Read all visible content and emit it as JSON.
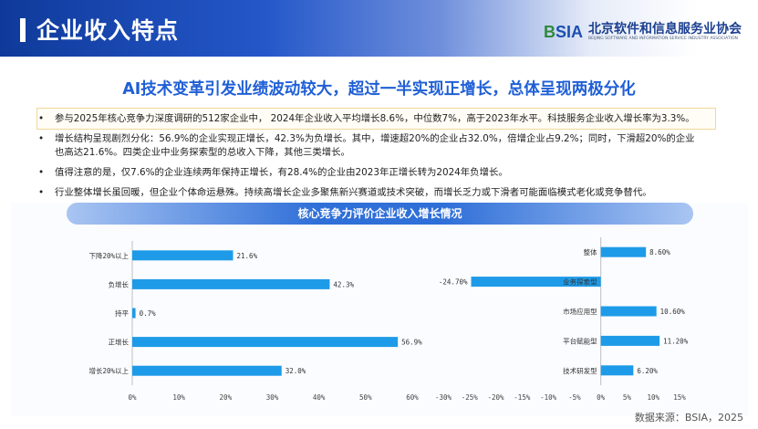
{
  "header": {
    "title": "企业收入特点"
  },
  "logo": {
    "mark_a": "B",
    "mark_b": "SIA",
    "name_cn": "北京软件和信息服务业协会",
    "name_en": "BEIJING SOFTWARE AND INFORMATION SERVICE INDUSTRY ASSOCIATION"
  },
  "subtitle": "AI技术变革引发业绩波动较大，超过一半实现正增长，总体呈现两极分化",
  "bullets": [
    {
      "line1": "参与2025年核心竞争力深度调研的512家企业中， 2024年企业收入平均增长8.6%，中位数7%，高于2023年水平。科技服务企业收入增长率为3.3%。",
      "line2": ""
    },
    {
      "line1": "增长结构呈现剧烈分化：56.9%的企业实现正增长，42.3%为负增长。其中，增速超20%的企业占32.0%，倍增企业占9.2%；同时，下滑超20%的企业",
      "line2": "也高达21.6%。四类企业中业务探索型的总收入下降，其他三类增长。"
    },
    {
      "line1": "值得注意的是，仅7.6%的企业连续两年保持正增长，有28.4%的企业由2023年正增长转为2024年负增长。",
      "line2": ""
    },
    {
      "line1": "行业整体增长虽回暖，但企业个体命运悬殊。持续高增长企业多聚焦新兴赛道或技术突破，而增长乏力或下滑者可能面临模式老化或竞争替代。",
      "line2": ""
    }
  ],
  "panel_title": "核心竞争力评价企业收入增长情况",
  "source": "数据来源：BSIA，2025",
  "colors": {
    "bar": "#1e9be8",
    "accent": "#1f5fd6"
  },
  "chart_data": [
    {
      "type": "bar",
      "orientation": "horizontal",
      "categories": [
        "下降20%以上",
        "负增长",
        "持平",
        "正增长",
        "增长20%以上"
      ],
      "values": [
        21.6,
        42.3,
        0.7,
        56.9,
        32.0
      ],
      "labels": [
        "21.6%",
        "42.3%",
        "0.7%",
        "56.9%",
        "32.0%"
      ],
      "xlim": [
        0,
        60
      ],
      "xticks": [
        0,
        10,
        20,
        30,
        40,
        50,
        60
      ],
      "xtick_labels": [
        "0%",
        "10%",
        "20%",
        "30%",
        "40%",
        "50%",
        "60%"
      ]
    },
    {
      "type": "bar",
      "orientation": "horizontal",
      "categories": [
        "整体",
        "业务探索型",
        "市场应用型",
        "平台赋能型",
        "技术研发型"
      ],
      "values": [
        8.6,
        -24.7,
        10.6,
        11.2,
        6.2
      ],
      "labels": [
        "8.60%",
        "-24.70%",
        "10.60%",
        "11.20%",
        "6.20%"
      ],
      "xlim": [
        -30,
        15
      ],
      "xticks": [
        -30,
        -25,
        -20,
        -15,
        -10,
        -5,
        0,
        5,
        10,
        15
      ],
      "xtick_labels": [
        "-30%",
        "-25%",
        "-20%",
        "-15%",
        "-10%",
        "-5%",
        "0%",
        "5%",
        "10%",
        "15%"
      ]
    }
  ]
}
